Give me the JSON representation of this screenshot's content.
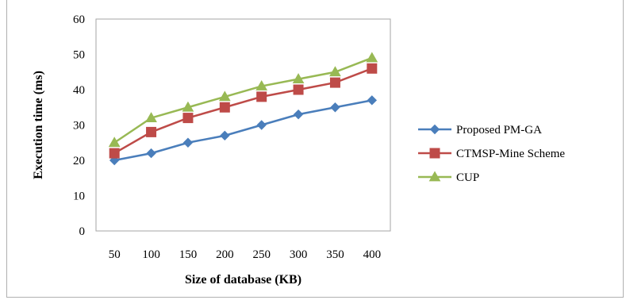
{
  "chart_data": {
    "type": "line",
    "title": "",
    "xlabel": "Size of database (KB)",
    "ylabel": "Execution time (ms)",
    "categories": [
      "50",
      "100",
      "150",
      "200",
      "250",
      "300",
      "350",
      "400"
    ],
    "ylim": [
      0,
      60
    ],
    "yticks": [
      "0",
      "10",
      "20",
      "30",
      "40",
      "50",
      "60"
    ],
    "grid": false,
    "legend_position": "right",
    "series": [
      {
        "name": "Proposed PM-GA",
        "values": [
          20,
          22,
          25,
          27,
          30,
          33,
          35,
          37
        ],
        "color": "#4a7ebb",
        "marker": "diamond"
      },
      {
        "name": "CTMSP-Mine Scheme",
        "values": [
          22,
          28,
          32,
          35,
          38,
          40,
          42,
          46
        ],
        "color": "#be4b48",
        "marker": "square"
      },
      {
        "name": "CUP",
        "values": [
          25,
          32,
          35,
          38,
          41,
          43,
          45,
          49
        ],
        "color": "#98b954",
        "marker": "triangle"
      }
    ]
  }
}
